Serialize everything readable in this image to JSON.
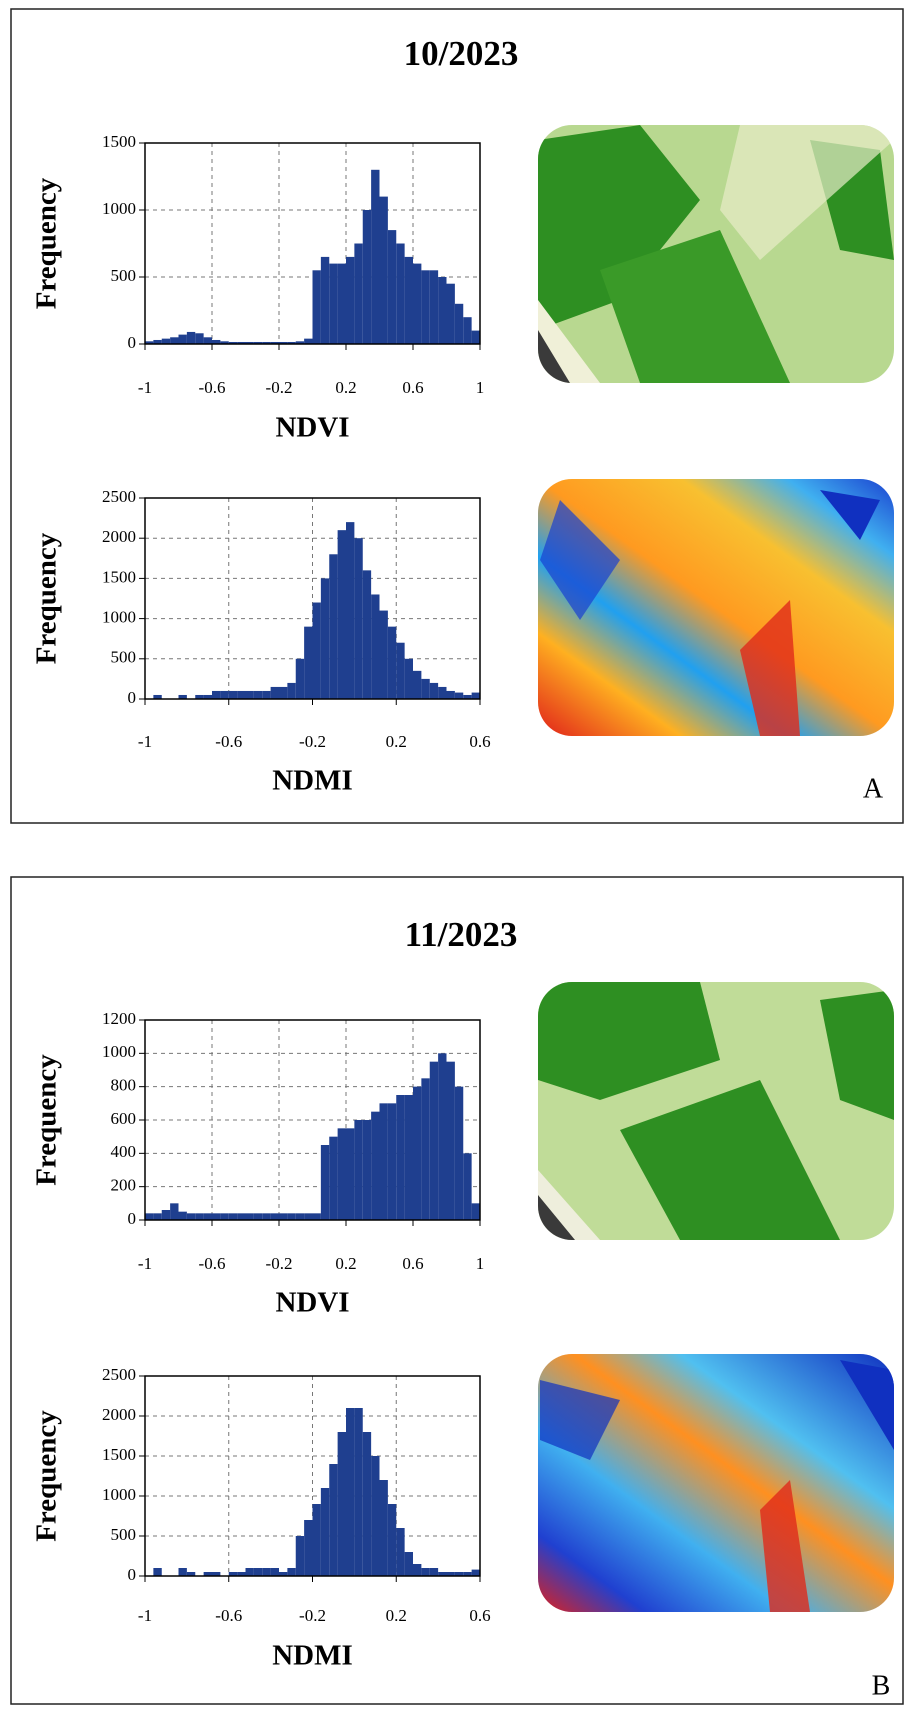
{
  "panels": [
    {
      "title": "10/2023",
      "label": "A"
    },
    {
      "title": "11/2023",
      "label": "B"
    }
  ],
  "chart_data": [
    {
      "type": "histogram",
      "x_label": "NDVI",
      "y_label": "Frequency",
      "color": "#1f3f8f",
      "grid": true,
      "xlim": [
        -1,
        1
      ],
      "xticks": [
        -1,
        -0.6,
        -0.2,
        0.2,
        0.6,
        1
      ],
      "ylim": [
        0,
        1500
      ],
      "yticks": [
        0,
        500,
        1000,
        1500
      ],
      "bins": [
        -1,
        -0.95,
        -0.9,
        -0.85,
        -0.8,
        -0.75,
        -0.7,
        -0.65,
        -0.6,
        -0.55,
        -0.5,
        -0.45,
        -0.4,
        -0.35,
        -0.3,
        -0.25,
        -0.2,
        -0.15,
        -0.1,
        -0.05,
        0,
        0.05,
        0.1,
        0.15,
        0.2,
        0.25,
        0.3,
        0.35,
        0.4,
        0.45,
        0.5,
        0.55,
        0.6,
        0.65,
        0.7,
        0.75,
        0.8,
        0.85,
        0.9,
        0.95,
        1
      ],
      "counts": [
        20,
        30,
        40,
        50,
        70,
        90,
        80,
        50,
        30,
        20,
        15,
        15,
        15,
        15,
        15,
        15,
        15,
        15,
        20,
        40,
        550,
        650,
        600,
        600,
        650,
        750,
        1000,
        1300,
        1100,
        850,
        750,
        650,
        600,
        550,
        550,
        500,
        450,
        300,
        200,
        100
      ]
    },
    {
      "type": "histogram",
      "x_label": "NDMI",
      "y_label": "Frequency",
      "color": "#1f3f8f",
      "grid": true,
      "xlim": [
        -1,
        0.6
      ],
      "xticks": [
        -1,
        -0.6,
        -0.2,
        0.2,
        0.6
      ],
      "ylim": [
        0,
        2500
      ],
      "yticks": [
        0,
        500,
        1000,
        1500,
        2000,
        2500
      ],
      "bins": [
        -1,
        -0.96,
        -0.92,
        -0.88,
        -0.84,
        -0.8,
        -0.76,
        -0.72,
        -0.68,
        -0.64,
        -0.6,
        -0.56,
        -0.52,
        -0.48,
        -0.44,
        -0.4,
        -0.36,
        -0.32,
        -0.28,
        -0.24,
        -0.2,
        -0.16,
        -0.12,
        -0.08,
        -0.04,
        0,
        0.04,
        0.08,
        0.12,
        0.16,
        0.2,
        0.24,
        0.28,
        0.32,
        0.36,
        0.4,
        0.44,
        0.48,
        0.52,
        0.56,
        0.6
      ],
      "counts": [
        0,
        50,
        0,
        0,
        50,
        0,
        50,
        50,
        100,
        100,
        100,
        100,
        100,
        100,
        100,
        150,
        150,
        200,
        500,
        900,
        1200,
        1500,
        1800,
        2100,
        2200,
        2000,
        1600,
        1300,
        1100,
        900,
        700,
        500,
        350,
        250,
        200,
        150,
        100,
        80,
        50,
        80
      ]
    },
    {
      "type": "histogram",
      "x_label": "NDVI",
      "y_label": "Frequency",
      "color": "#1f3f8f",
      "grid": true,
      "xlim": [
        -1,
        1
      ],
      "xticks": [
        -1,
        -0.6,
        -0.2,
        0.2,
        0.6,
        1
      ],
      "ylim": [
        0,
        1200
      ],
      "yticks": [
        0,
        200,
        400,
        600,
        800,
        1000,
        1200
      ],
      "bins": [
        -1,
        -0.95,
        -0.9,
        -0.85,
        -0.8,
        -0.75,
        -0.7,
        -0.65,
        -0.6,
        -0.55,
        -0.5,
        -0.45,
        -0.4,
        -0.35,
        -0.3,
        -0.25,
        -0.2,
        -0.15,
        -0.1,
        -0.05,
        0,
        0.05,
        0.1,
        0.15,
        0.2,
        0.25,
        0.3,
        0.35,
        0.4,
        0.45,
        0.5,
        0.55,
        0.6,
        0.65,
        0.7,
        0.75,
        0.8,
        0.85,
        0.9,
        0.95,
        1
      ],
      "counts": [
        40,
        40,
        60,
        100,
        50,
        40,
        40,
        40,
        40,
        40,
        40,
        40,
        40,
        40,
        40,
        40,
        40,
        40,
        40,
        40,
        40,
        450,
        500,
        550,
        550,
        600,
        600,
        650,
        700,
        700,
        750,
        750,
        800,
        850,
        950,
        1000,
        950,
        800,
        400,
        100
      ]
    },
    {
      "type": "histogram",
      "x_label": "NDMI",
      "y_label": "Frequency",
      "color": "#1f3f8f",
      "grid": true,
      "xlim": [
        -1,
        0.6
      ],
      "xticks": [
        -1,
        -0.6,
        -0.2,
        0.2,
        0.6
      ],
      "ylim": [
        0,
        2500
      ],
      "yticks": [
        0,
        500,
        1000,
        1500,
        2000,
        2500
      ],
      "bins": [
        -1,
        -0.96,
        -0.92,
        -0.88,
        -0.84,
        -0.8,
        -0.76,
        -0.72,
        -0.68,
        -0.64,
        -0.6,
        -0.56,
        -0.52,
        -0.48,
        -0.44,
        -0.4,
        -0.36,
        -0.32,
        -0.28,
        -0.24,
        -0.2,
        -0.16,
        -0.12,
        -0.08,
        -0.04,
        0,
        0.04,
        0.08,
        0.12,
        0.16,
        0.2,
        0.24,
        0.28,
        0.32,
        0.36,
        0.4,
        0.44,
        0.48,
        0.52,
        0.56,
        0.6
      ],
      "counts": [
        0,
        100,
        0,
        0,
        100,
        50,
        0,
        50,
        50,
        0,
        50,
        50,
        100,
        100,
        100,
        100,
        50,
        100,
        500,
        700,
        900,
        1100,
        1400,
        1800,
        2100,
        2100,
        1800,
        1500,
        1200,
        900,
        600,
        300,
        150,
        100,
        100,
        50,
        50,
        50,
        50,
        80
      ]
    }
  ]
}
